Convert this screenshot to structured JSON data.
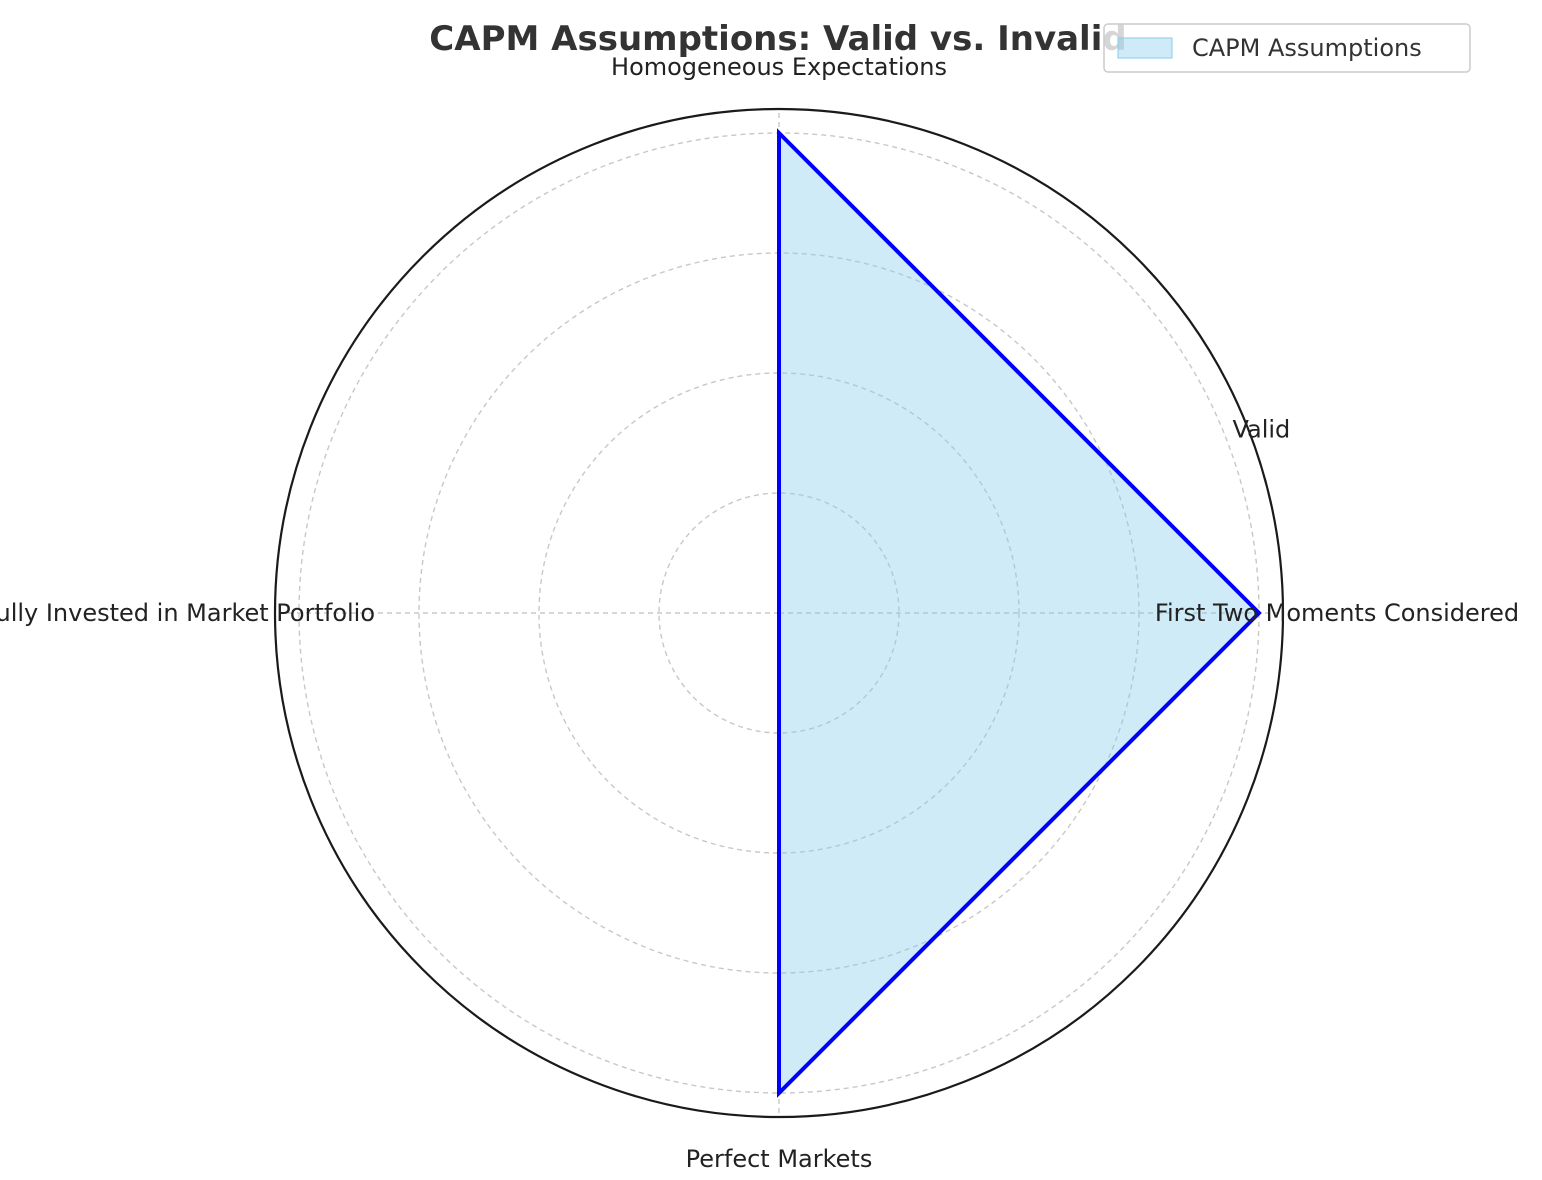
{
  "chart_data": {
    "type": "radar",
    "title": "CAPM Assumptions: Valid vs. Invalid",
    "categories": [
      "Homogeneous Expectations",
      "First Two Moments Considered",
      "Perfect Markets",
      "Fully Invested in Market Portfolio"
    ],
    "series": [
      {
        "name": "CAPM Assumptions",
        "values": [
          1,
          1,
          1,
          0
        ]
      }
    ],
    "radial_ticks": [
      {
        "value": 1,
        "label": "Valid"
      }
    ],
    "rlim": [
      0,
      1.05
    ],
    "grid": true,
    "legend_position": "top-right",
    "colors": {
      "fill": "#87ceeb",
      "line": "#0000ff",
      "grid": "#c8c8c8",
      "frame": "#1a1a1a"
    }
  }
}
